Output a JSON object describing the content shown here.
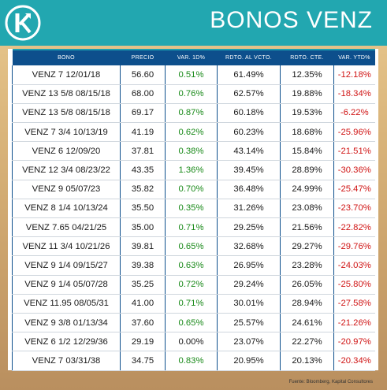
{
  "header": {
    "title": "BONOS VENZ",
    "logo_icon": "kapital-k-logo-icon",
    "brand_color": "#22a7b0"
  },
  "table": {
    "columns": [
      "BONO",
      "PRECIO",
      "VAR. 1D%",
      "RDTO. AL VCTO.",
      "RDTO. CTE.",
      "VAR. YTD%"
    ],
    "rows": [
      {
        "prefix": "VENZ 7 ",
        "suffix": "12/01/18",
        "precio": "56.60",
        "var1d": "0.51%",
        "vcto": "61.49%",
        "cte": "12.35%",
        "ytd": "-12.18%"
      },
      {
        "prefix": "VENZ 13 ",
        "suffix": "5/8 08/15/18",
        "precio": "68.00",
        "var1d": "0.76%",
        "vcto": "62.57%",
        "cte": "19.88%",
        "ytd": "-18.34%"
      },
      {
        "prefix": "VENZ 13 ",
        "suffix": "5/8 08/15/18",
        "precio": "69.17",
        "var1d": "0.87%",
        "vcto": "60.18%",
        "cte": "19.53%",
        "ytd": "-6.22%"
      },
      {
        "prefix": "VENZ 7 ",
        "suffix": "3/4 10/13/19",
        "precio": "41.19",
        "var1d": "0.62%",
        "vcto": "60.23%",
        "cte": "18.68%",
        "ytd": "-25.96%"
      },
      {
        "prefix": "VENZ 6 ",
        "suffix": "12/09/20",
        "precio": "37.81",
        "var1d": "0.38%",
        "vcto": "43.14%",
        "cte": "15.84%",
        "ytd": "-21.51%"
      },
      {
        "prefix": "VENZ 12 ",
        "suffix": "3/4 08/23/22",
        "precio": "43.35",
        "var1d": "1.36%",
        "vcto": "39.45%",
        "cte": "28.89%",
        "ytd": "-30.36%"
      },
      {
        "prefix": "VENZ 9 ",
        "suffix": "05/07/23",
        "precio": "35.82",
        "var1d": "0.70%",
        "vcto": "36.48%",
        "cte": "24.99%",
        "ytd": "-25.47%"
      },
      {
        "prefix": "VENZ 8 ",
        "suffix": "1/4 10/13/24",
        "precio": "35.50",
        "var1d": "0.35%",
        "vcto": "31.26%",
        "cte": "23.08%",
        "ytd": "-23.70%"
      },
      {
        "prefix": "VENZ 7.65 ",
        "suffix": "04/21/25",
        "precio": "35.00",
        "var1d": "0.71%",
        "vcto": "29.25%",
        "cte": "21.56%",
        "ytd": "-22.82%"
      },
      {
        "prefix": "VENZ 11 ",
        "suffix": "3/4 10/21/26",
        "precio": "39.81",
        "var1d": "0.65%",
        "vcto": "32.68%",
        "cte": "29.27%",
        "ytd": "-29.76%"
      },
      {
        "prefix": "VENZ 9 ",
        "suffix": "1/4 09/15/27",
        "precio": "39.38",
        "var1d": "0.63%",
        "vcto": "26.95%",
        "cte": "23.28%",
        "ytd": "-24.03%"
      },
      {
        "prefix": "VENZ 9 ",
        "suffix": "1/4 05/07/28",
        "precio": "35.25",
        "var1d": "0.72%",
        "vcto": "29.24%",
        "cte": "26.05%",
        "ytd": "-25.80%"
      },
      {
        "prefix": "VENZ 11.95 ",
        "suffix": "08/05/31",
        "precio": "41.00",
        "var1d": "0.71%",
        "vcto": "30.01%",
        "cte": "28.94%",
        "ytd": "-27.58%"
      },
      {
        "prefix": "VENZ 9 ",
        "suffix": "3/8 01/13/34",
        "precio": "37.60",
        "var1d": "0.65%",
        "vcto": "25.57%",
        "cte": "24.61%",
        "ytd": "-21.26%"
      },
      {
        "prefix": "VENZ 6 ",
        "suffix": "1/2 12/29/36",
        "precio": "29.19",
        "var1d": "0.00%",
        "vcto": "23.07%",
        "cte": "22.27%",
        "ytd": "-20.97%"
      },
      {
        "prefix": "VENZ 7 ",
        "suffix": "03/31/38",
        "precio": "34.75",
        "var1d": "0.83%",
        "vcto": "20.95%",
        "cte": "20.13%",
        "ytd": "-20.34%"
      }
    ]
  },
  "footer": {
    "source": "Fuente: Bloomberg, Kapital Consultores"
  },
  "colors": {
    "header_bg": "#0d4f8c",
    "positive": "#1a8a1a",
    "negative": "#d01515"
  }
}
